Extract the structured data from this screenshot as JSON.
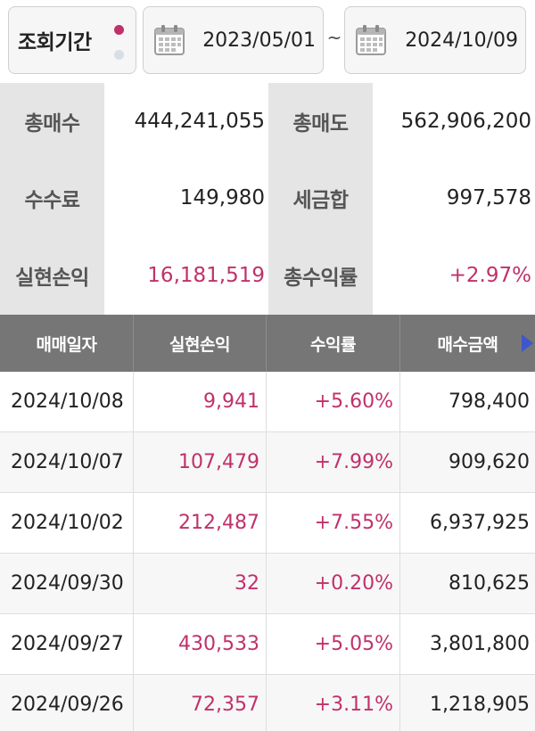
{
  "period": {
    "label": "조회기간",
    "start_date": "2023/05/01",
    "separator": "~",
    "end_date": "2024/10/09"
  },
  "summary": {
    "total_buy_label": "총매수",
    "total_buy_value": "444,241,055",
    "total_sell_label": "총매도",
    "total_sell_value": "562,906,200",
    "fee_label": "수수료",
    "fee_value": "149,980",
    "tax_label": "세금합",
    "tax_value": "997,578",
    "realized_pnl_label": "실현손익",
    "realized_pnl_value": "16,181,519",
    "total_return_label": "총수익률",
    "total_return_value": "+2.97%"
  },
  "table": {
    "headers": [
      "매매일자",
      "실현손익",
      "수익률",
      "매수금액"
    ],
    "rows": [
      {
        "date": "2024/10/08",
        "pnl": "9,941",
        "rate": "+5.60%",
        "buy_amount": "798,400"
      },
      {
        "date": "2024/10/07",
        "pnl": "107,479",
        "rate": "+7.99%",
        "buy_amount": "909,620"
      },
      {
        "date": "2024/10/02",
        "pnl": "212,487",
        "rate": "+7.55%",
        "buy_amount": "6,937,925"
      },
      {
        "date": "2024/09/30",
        "pnl": "32",
        "rate": "+0.20%",
        "buy_amount": "810,625"
      },
      {
        "date": "2024/09/27",
        "pnl": "430,533",
        "rate": "+5.05%",
        "buy_amount": "3,801,800"
      },
      {
        "date": "2024/09/26",
        "pnl": "72,357",
        "rate": "+3.11%",
        "buy_amount": "1,218,905"
      }
    ]
  },
  "colors": {
    "accent_pink": "#c0316a",
    "header_gray": "#767676",
    "label_gray": "#e5e5e5",
    "scroll_arrow_blue": "#3e57c9"
  },
  "icons": {
    "date_picker": "calendar-icon",
    "scroll_right": "scroll-right-arrow-icon"
  }
}
